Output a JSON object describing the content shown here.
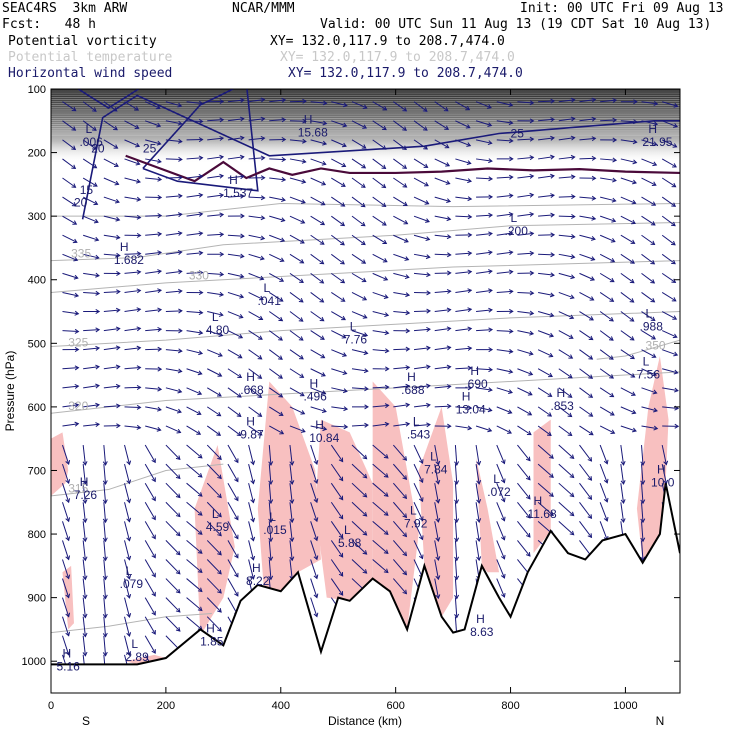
{
  "header": {
    "model": "SEAC4RS  3km ARW",
    "org": "NCAR/MMM",
    "init": "Init: 00 UTC Fri 09 Aug 13",
    "fcst": "Fcst:   48 h",
    "valid": "Valid: 00 UTC Sun 11 Aug 13 (19 CDT Sat 10 Aug 13)",
    "fields": [
      {
        "name": "Potential vorticity",
        "xy": "XY= 132.0,117.9 to 208.7,474.0",
        "color": "#000000"
      },
      {
        "name": "Potential temperature",
        "xy": "XY= 132.0,117.9 to 208.7,474.0",
        "color": "#c8c8c8"
      },
      {
        "name": "Horizontal wind speed",
        "xy": "XY= 132.0,117.9 to 208.7,474.0",
        "color": "#1a1a6a"
      }
    ]
  },
  "colors": {
    "wind": "#1a1a7a",
    "pv_fill": "#f8c0c0",
    "theta": "#b4b4b4",
    "ground": "#000000",
    "tropopause": "#4a0a3a"
  },
  "chart_data": {
    "type": "cross-section",
    "xlabel": "Distance (km)",
    "ylabel": "Pressure (hPa)",
    "xlim": [
      0,
      1095
    ],
    "ylim": [
      1050,
      100
    ],
    "x_ticks": [
      "0",
      "200",
      "400",
      "600",
      "800",
      "1000"
    ],
    "y_ticks": [
      "100",
      "200",
      "300",
      "400",
      "500",
      "600",
      "700",
      "800",
      "900",
      "1000"
    ],
    "endpoint_labels": {
      "left": "S",
      "right": "N"
    },
    "terrain": [
      [
        0,
        1005
      ],
      [
        150,
        1005
      ],
      [
        200,
        995
      ],
      [
        260,
        950
      ],
      [
        300,
        975
      ],
      [
        330,
        905
      ],
      [
        360,
        880
      ],
      [
        400,
        890
      ],
      [
        430,
        860
      ],
      [
        470,
        985
      ],
      [
        500,
        900
      ],
      [
        520,
        905
      ],
      [
        560,
        870
      ],
      [
        590,
        890
      ],
      [
        620,
        950
      ],
      [
        650,
        850
      ],
      [
        680,
        930
      ],
      [
        700,
        955
      ],
      [
        720,
        950
      ],
      [
        750,
        850
      ],
      [
        780,
        900
      ],
      [
        800,
        930
      ],
      [
        830,
        860
      ],
      [
        870,
        795
      ],
      [
        900,
        830
      ],
      [
        930,
        840
      ],
      [
        960,
        810
      ],
      [
        1000,
        800
      ],
      [
        1030,
        845
      ],
      [
        1060,
        800
      ],
      [
        1070,
        720
      ],
      [
        1095,
        830
      ]
    ],
    "tropopause": [
      [
        130,
        205
      ],
      [
        250,
        245
      ],
      [
        300,
        215
      ],
      [
        340,
        240
      ],
      [
        380,
        225
      ],
      [
        420,
        235
      ],
      [
        470,
        225
      ],
      [
        520,
        232
      ],
      [
        600,
        232
      ],
      [
        680,
        230
      ],
      [
        760,
        225
      ],
      [
        840,
        228
      ],
      [
        920,
        226
      ],
      [
        1000,
        230
      ],
      [
        1095,
        232
      ]
    ],
    "wind_contours": [
      {
        "label": "25",
        "points": [
          [
            160,
            225
          ],
          [
            260,
            125
          ],
          [
            340,
            90
          ],
          [
            360,
            260
          ],
          [
            220,
            245
          ],
          [
            160,
            225
          ]
        ]
      },
      {
        "label": "25",
        "points": [
          [
            55,
            305
          ],
          [
            90,
            145
          ],
          [
            150,
            110
          ],
          [
            380,
            205
          ],
          [
            650,
            190
          ],
          [
            780,
            170
          ],
          [
            1050,
            150
          ],
          [
            1095,
            150
          ]
        ]
      },
      {
        "label": "20",
        "points": [
          [
            30,
            90
          ],
          [
            100,
            130
          ],
          [
            170,
            90
          ]
        ]
      }
    ],
    "theta_labels": [
      {
        "value": "335",
        "x": 35,
        "y": 365
      },
      {
        "value": "330",
        "x": 240,
        "y": 400
      },
      {
        "value": "325",
        "x": 30,
        "y": 505
      },
      {
        "value": "320",
        "x": 30,
        "y": 605
      },
      {
        "value": "315",
        "x": 30,
        "y": 735
      },
      {
        "value": "350",
        "x": 1035,
        "y": 510
      }
    ],
    "contour_labels": [
      {
        "value": "20",
        "x": 70,
        "y": 200
      },
      {
        "value": "25",
        "x": 160,
        "y": 200
      },
      {
        "value": "20",
        "x": 40,
        "y": 285
      },
      {
        "value": "25",
        "x": 800,
        "y": 176
      },
      {
        "value": "15",
        "x": 50,
        "y": 265
      }
    ],
    "extrema": [
      {
        "type": "L",
        "value": ".006",
        "x": 60,
        "y": 190
      },
      {
        "type": "H",
        "value": "1.682",
        "x": 120,
        "y": 375
      },
      {
        "type": "H",
        "value": "1.537",
        "x": 310,
        "y": 270
      },
      {
        "type": "H",
        "value": "15.68",
        "x": 440,
        "y": 175
      },
      {
        "type": "H",
        "value": "21.95",
        "x": 1040,
        "y": 190
      },
      {
        "type": "L",
        "value": ".200",
        "x": 800,
        "y": 330
      },
      {
        "type": "L",
        "value": ".041",
        "x": 370,
        "y": 440
      },
      {
        "type": "L",
        "value": "4.80",
        "x": 280,
        "y": 485
      },
      {
        "type": "L",
        "value": "7.76",
        "x": 520,
        "y": 500
      },
      {
        "type": "L",
        "value": ".988",
        "x": 1035,
        "y": 480
      },
      {
        "type": "L",
        "value": "7.56",
        "x": 1030,
        "y": 555
      },
      {
        "type": "H",
        "value": ".668",
        "x": 340,
        "y": 580
      },
      {
        "type": "H",
        "value": ".496",
        "x": 450,
        "y": 590
      },
      {
        "type": "H",
        "value": ".688",
        "x": 620,
        "y": 580
      },
      {
        "type": "H",
        "value": ".690",
        "x": 730,
        "y": 570
      },
      {
        "type": "H",
        "value": "13.04",
        "x": 715,
        "y": 610
      },
      {
        "type": "H",
        "value": ".853",
        "x": 880,
        "y": 605
      },
      {
        "type": "H",
        "value": "9.87",
        "x": 340,
        "y": 650
      },
      {
        "type": "H",
        "value": "10.84",
        "x": 460,
        "y": 655
      },
      {
        "type": "L",
        "value": ".543",
        "x": 630,
        "y": 650
      },
      {
        "type": "L",
        "value": "7.84",
        "x": 660,
        "y": 705
      },
      {
        "type": "L",
        "value": ".072",
        "x": 770,
        "y": 740
      },
      {
        "type": "H",
        "value": "10.0",
        "x": 1055,
        "y": 725
      },
      {
        "type": "H",
        "value": "7.26",
        "x": 50,
        "y": 745
      },
      {
        "type": "L",
        "value": "4.59",
        "x": 280,
        "y": 795
      },
      {
        "type": "L",
        "value": ".015",
        "x": 380,
        "y": 800
      },
      {
        "type": "L",
        "value": "5.88",
        "x": 510,
        "y": 820
      },
      {
        "type": "L",
        "value": "7.92",
        "x": 625,
        "y": 790
      },
      {
        "type": "H",
        "value": "11.68",
        "x": 840,
        "y": 775
      },
      {
        "type": "L",
        "value": ".079",
        "x": 130,
        "y": 885
      },
      {
        "type": "H",
        "value": "8.22",
        "x": 350,
        "y": 880
      },
      {
        "type": "H",
        "value": "8.63",
        "x": 740,
        "y": 960
      },
      {
        "type": "H",
        "value": "1.85",
        "x": 270,
        "y": 975
      },
      {
        "type": "L",
        "value": "2.89",
        "x": 140,
        "y": 1000
      },
      {
        "type": "H",
        "value": "5.16",
        "x": 20,
        "y": 1015
      }
    ]
  }
}
